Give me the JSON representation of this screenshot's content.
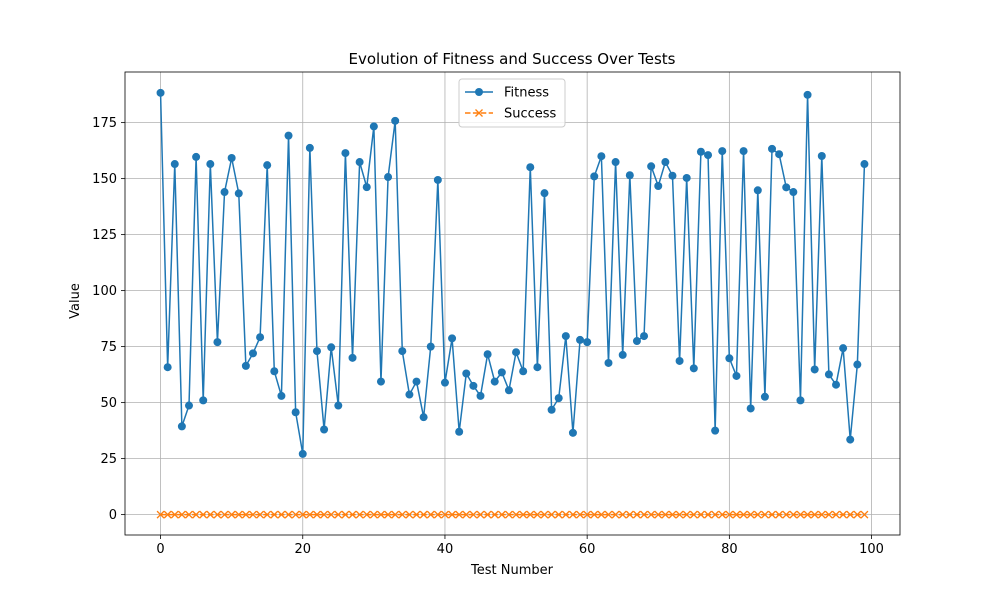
{
  "chart_data": {
    "type": "line",
    "title": "Evolution of Fitness and Success Over Tests",
    "xlabel": "Test Number",
    "ylabel": "Value",
    "xlim": [
      -5,
      104
    ],
    "ylim": [
      -9.1,
      197.6
    ],
    "xticks": [
      0,
      20,
      40,
      60,
      80,
      100
    ],
    "yticks": [
      0,
      25,
      50,
      75,
      100,
      125,
      150,
      175
    ],
    "grid": true,
    "legend_position": "top-center",
    "x": [
      0,
      1,
      2,
      3,
      4,
      5,
      6,
      7,
      8,
      9,
      10,
      11,
      12,
      13,
      14,
      15,
      16,
      17,
      18,
      19,
      20,
      21,
      22,
      23,
      24,
      25,
      26,
      27,
      28,
      29,
      30,
      31,
      32,
      33,
      34,
      35,
      36,
      37,
      38,
      39,
      40,
      41,
      42,
      43,
      44,
      45,
      46,
      47,
      48,
      49,
      50,
      51,
      52,
      53,
      54,
      55,
      56,
      57,
      58,
      59,
      60,
      61,
      62,
      63,
      64,
      65,
      66,
      67,
      68,
      69,
      70,
      71,
      72,
      73,
      74,
      75,
      76,
      77,
      78,
      79,
      80,
      81,
      82,
      83,
      84,
      85,
      86,
      87,
      88,
      89,
      90,
      91,
      92,
      93,
      94,
      95,
      96,
      97,
      98,
      99
    ],
    "series": [
      {
        "name": "Fitness",
        "color": "#1f77b4",
        "marker": "circle",
        "linestyle": "solid",
        "values": [
          188.3,
          65.8,
          156.5,
          39.4,
          48.7,
          159.7,
          51.0,
          156.5,
          77.0,
          144.0,
          159.2,
          143.4,
          66.4,
          72.0,
          79.2,
          156.0,
          64.0,
          53.0,
          169.2,
          45.7,
          27.1,
          163.7,
          73.0,
          38.0,
          74.7,
          48.7,
          161.4,
          70.0,
          157.4,
          146.2,
          173.3,
          59.4,
          150.7,
          175.8,
          73.0,
          53.6,
          59.4,
          43.5,
          75.0,
          149.4,
          58.9,
          78.7,
          37.0,
          63.0,
          57.5,
          53.0,
          71.6,
          59.4,
          63.5,
          55.5,
          72.5,
          64.0,
          155.1,
          65.8,
          143.5,
          46.8,
          52.0,
          79.7,
          36.5,
          78.0,
          77.0,
          151.0,
          160.0,
          67.7,
          157.4,
          71.3,
          151.5,
          77.5,
          79.7,
          155.5,
          146.7,
          157.4,
          151.3,
          68.6,
          150.3,
          65.3,
          162.0,
          160.5,
          37.5,
          162.3,
          69.8,
          61.9,
          162.3,
          47.4,
          144.8,
          52.6,
          163.3,
          160.9,
          146.1,
          144.0,
          51.0,
          187.4,
          64.8,
          160.1,
          62.6,
          58.0,
          74.3,
          33.5,
          67.0,
          156.5
        ]
      },
      {
        "name": "Success",
        "color": "#ff7f0e",
        "marker": "x",
        "linestyle": "dashed",
        "values": [
          0,
          0,
          0,
          0,
          0,
          0,
          0,
          0,
          0,
          0,
          0,
          0,
          0,
          0,
          0,
          0,
          0,
          0,
          0,
          0,
          0,
          0,
          0,
          0,
          0,
          0,
          0,
          0,
          0,
          0,
          0,
          0,
          0,
          0,
          0,
          0,
          0,
          0,
          0,
          0,
          0,
          0,
          0,
          0,
          0,
          0,
          0,
          0,
          0,
          0,
          0,
          0,
          0,
          0,
          0,
          0,
          0,
          0,
          0,
          0,
          0,
          0,
          0,
          0,
          0,
          0,
          0,
          0,
          0,
          0,
          0,
          0,
          0,
          0,
          0,
          0,
          0,
          0,
          0,
          0,
          0,
          0,
          0,
          0,
          0,
          0,
          0,
          0,
          0,
          0,
          0,
          0,
          0,
          0,
          0,
          0,
          0,
          0,
          0,
          0
        ]
      }
    ]
  }
}
